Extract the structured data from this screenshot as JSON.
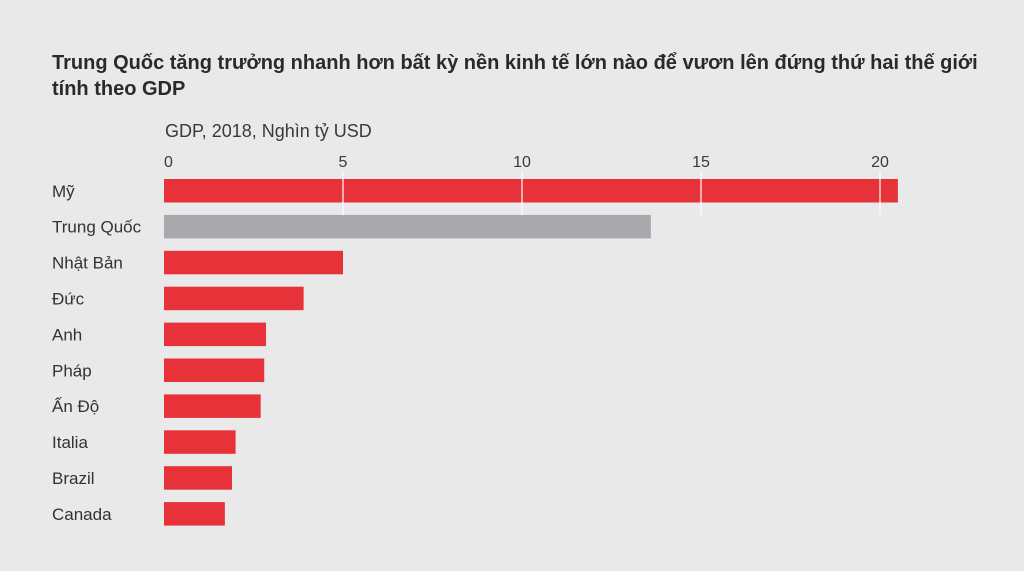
{
  "chart_data": {
    "type": "bar",
    "orientation": "horizontal",
    "title": "Trung Quốc tăng trưởng nhanh hơn bất kỳ nền kinh tế lớn nào để vươn lên đứng thứ hai thế giới tính theo GDP",
    "axis_caption": "GDP, 2018, Nghìn tỷ USD",
    "categories": [
      "Mỹ",
      "Trung Quốc",
      "Nhật Bản",
      "Đức",
      "Anh",
      "Pháp",
      "Ấn Độ",
      "Italia",
      "Brazil",
      "Canada"
    ],
    "values": [
      20.5,
      13.6,
      5.0,
      3.9,
      2.85,
      2.8,
      2.7,
      2.0,
      1.9,
      1.7
    ],
    "highlight": "Trung Quốc",
    "xlim": [
      0,
      20.5
    ],
    "xticks": [
      0,
      5,
      10,
      15,
      20
    ],
    "xtick_labels": [
      "0",
      "5",
      "10",
      "15",
      "20"
    ],
    "grid": true,
    "colors": {
      "default_bar": "#e8323a",
      "highlight_bar": "#a7a9ac",
      "gridline": "#ffffff",
      "background": "#e9e9e9"
    }
  }
}
